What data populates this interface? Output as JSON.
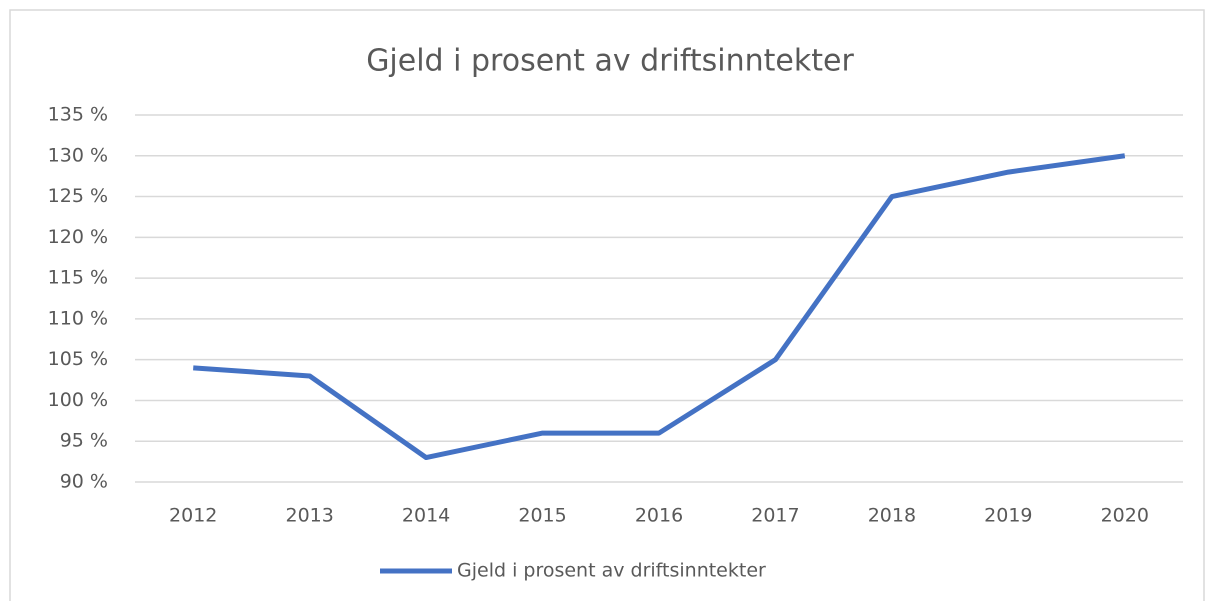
{
  "chart_data": {
    "type": "line",
    "title": "Gjeld i prosent av driftsinntekter",
    "categories": [
      "2012",
      "2013",
      "2014",
      "2015",
      "2016",
      "2017",
      "2018",
      "2019",
      "2020"
    ],
    "series": [
      {
        "name": "Gjeld i prosent av driftsinntekter",
        "color": "#4472c4",
        "values": [
          104,
          103,
          93,
          96,
          96,
          105,
          125,
          128,
          130
        ]
      }
    ],
    "ylim": [
      90,
      135
    ],
    "yticks": [
      {
        "value": 90,
        "label": "90 %"
      },
      {
        "value": 95,
        "label": "95 %"
      },
      {
        "value": 100,
        "label": "100 %"
      },
      {
        "value": 105,
        "label": "105 %"
      },
      {
        "value": 110,
        "label": "110 %"
      },
      {
        "value": 115,
        "label": "115 %"
      },
      {
        "value": 120,
        "label": "120 %"
      },
      {
        "value": 125,
        "label": "125 %"
      },
      {
        "value": 130,
        "label": "130 %"
      },
      {
        "value": 135,
        "label": "135 %"
      }
    ],
    "grid": true,
    "legend": "bottom"
  }
}
